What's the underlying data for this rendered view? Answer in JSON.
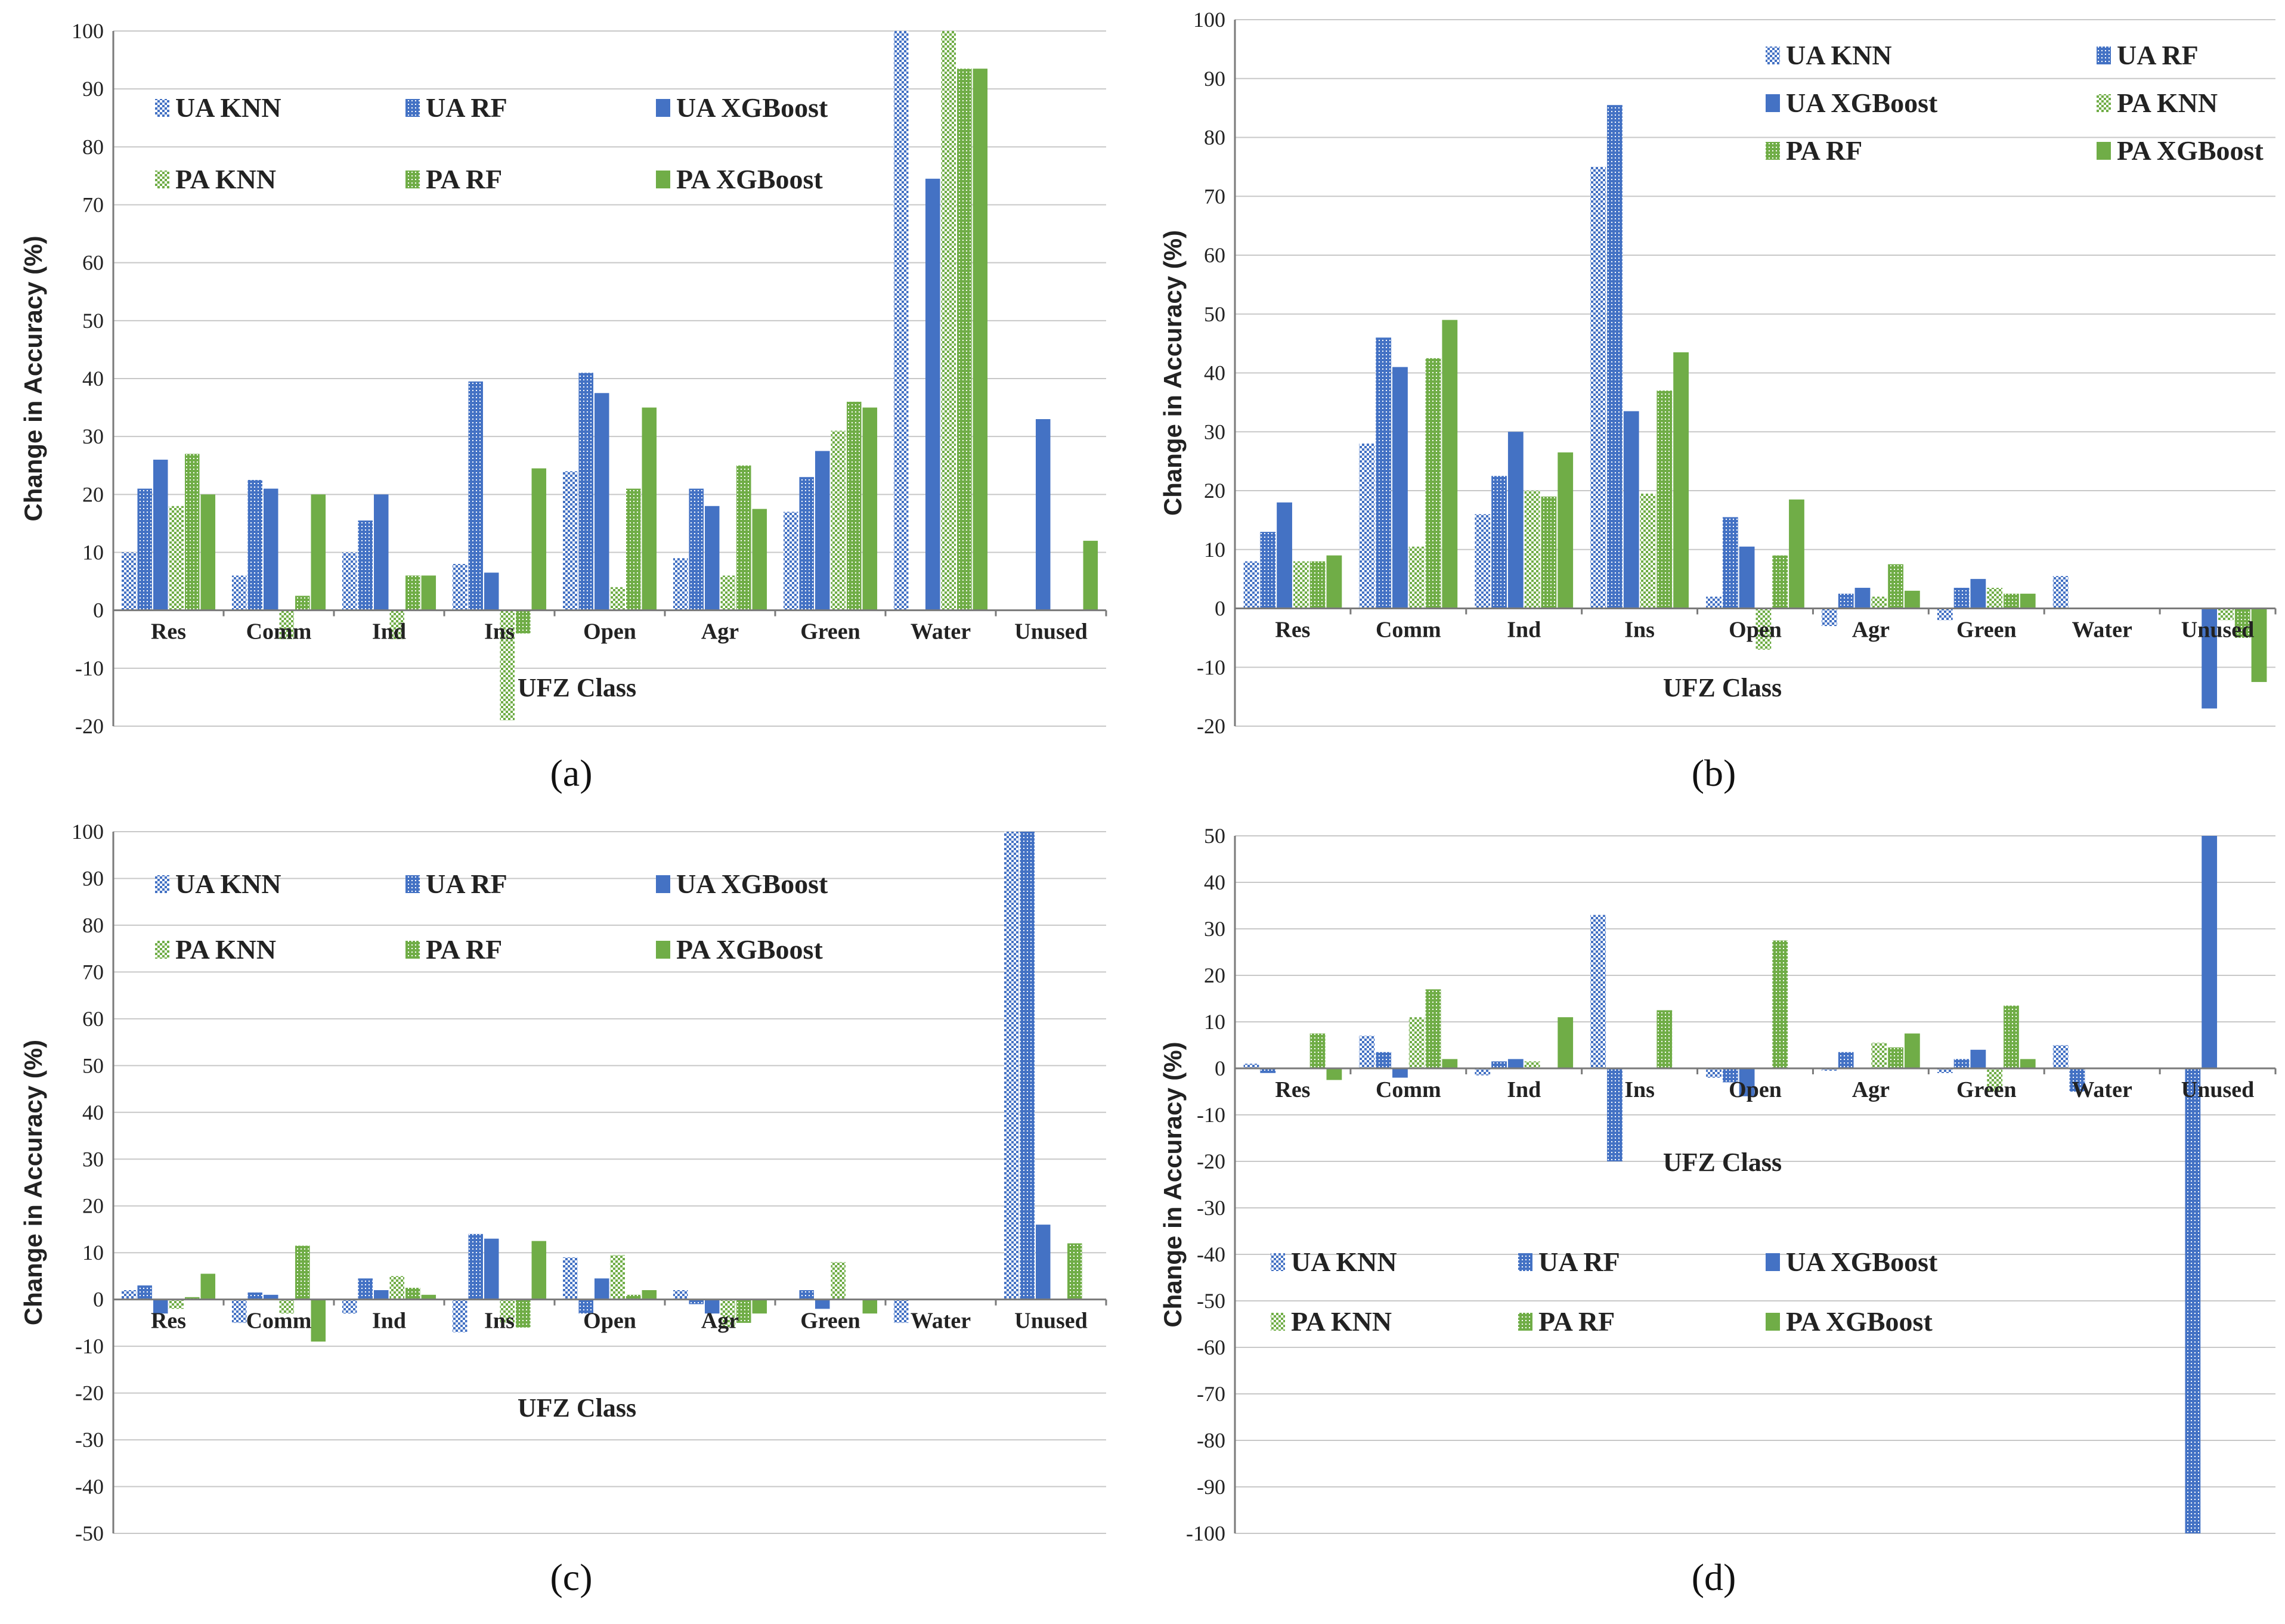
{
  "chart_data": [
    {
      "type": "bar",
      "panel_label": "(a)",
      "xlabel": "UFZ Class",
      "ylabel": "Change in Accuracy (%)",
      "ylim": [
        -20,
        100
      ],
      "ytick_step": 10,
      "legend_position": "top-left",
      "legend_columns": 3,
      "categories": [
        "Res",
        "Comm",
        "Ind",
        "Ins",
        "Open",
        "Agr",
        "Green",
        "Water",
        "Unused"
      ],
      "series": [
        {
          "name": "UA KNN",
          "values": [
            10,
            6,
            10,
            8,
            24,
            9,
            17,
            100,
            0
          ]
        },
        {
          "name": "UA RF",
          "values": [
            21,
            22.5,
            15.5,
            39.5,
            41,
            21,
            23,
            0,
            0
          ]
        },
        {
          "name": "UA XGBoost",
          "values": [
            26,
            21,
            20,
            6.5,
            37.5,
            18,
            27.5,
            74.5,
            33
          ]
        },
        {
          "name": "PA KNN",
          "values": [
            18,
            -5,
            -5,
            -19,
            4,
            6,
            31,
            100,
            0
          ]
        },
        {
          "name": "PA RF",
          "values": [
            27,
            2.5,
            6,
            -4,
            21,
            25,
            36,
            93.5,
            0
          ]
        },
        {
          "name": "PA XGBoost",
          "values": [
            20,
            20,
            6,
            24.5,
            35,
            17.5,
            35,
            93.5,
            12
          ]
        }
      ]
    },
    {
      "type": "bar",
      "panel_label": "(b)",
      "xlabel": "UFZ Class",
      "ylabel": "Change in Accuracy (%)",
      "ylim": [
        -20,
        100
      ],
      "ytick_step": 10,
      "legend_position": "top-right",
      "legend_columns": 2,
      "categories": [
        "Res",
        "Comm",
        "Ind",
        "Ins",
        "Open",
        "Agr",
        "Green",
        "Water",
        "Unused"
      ],
      "series": [
        {
          "name": "UA KNN",
          "values": [
            8,
            28,
            16,
            75,
            2,
            -3,
            -2,
            5.5,
            0
          ]
        },
        {
          "name": "UA RF",
          "values": [
            13,
            46,
            22.5,
            85.5,
            15.5,
            2.5,
            3.5,
            0,
            0
          ]
        },
        {
          "name": "UA XGBoost",
          "values": [
            18,
            41,
            30,
            33.5,
            10.5,
            3.5,
            5,
            0,
            -17
          ]
        },
        {
          "name": "PA KNN",
          "values": [
            8,
            10.5,
            20,
            19.5,
            -7,
            2,
            3.5,
            0,
            -2
          ]
        },
        {
          "name": "PA RF",
          "values": [
            8,
            42.5,
            19,
            37,
            9,
            7.5,
            2.5,
            0,
            -5
          ]
        },
        {
          "name": "PA XGBoost",
          "values": [
            9,
            49,
            26.5,
            43.5,
            18.5,
            3,
            2.5,
            0,
            -12.5
          ]
        }
      ]
    },
    {
      "type": "bar",
      "panel_label": "(c)",
      "xlabel": "UFZ Class",
      "ylabel": "Change in Accuracy (%)",
      "ylim": [
        -50,
        100
      ],
      "ytick_step": 10,
      "legend_position": "top-left",
      "legend_columns": 3,
      "categories": [
        "Res",
        "Comm",
        "Ind",
        "Ins",
        "Open",
        "Agr",
        "Green",
        "Water",
        "Unused"
      ],
      "series": [
        {
          "name": "UA KNN",
          "values": [
            2,
            -5,
            -3,
            -7,
            9,
            2,
            0,
            -5,
            100
          ]
        },
        {
          "name": "UA RF",
          "values": [
            3,
            1.5,
            4.5,
            14,
            -3,
            -1,
            2,
            0,
            100
          ]
        },
        {
          "name": "UA XGBoost",
          "values": [
            -3,
            1,
            2,
            13,
            4.5,
            -3,
            -2,
            0,
            16
          ]
        },
        {
          "name": "PA KNN",
          "values": [
            -2,
            -3,
            5,
            -5,
            9.5,
            -6,
            8,
            0,
            0
          ]
        },
        {
          "name": "PA RF",
          "values": [
            0.5,
            11.5,
            2.5,
            -6,
            1,
            -5,
            0,
            0,
            12
          ]
        },
        {
          "name": "PA XGBoost",
          "values": [
            5.5,
            -9,
            1,
            12.5,
            2,
            -3,
            -3,
            0,
            0
          ]
        }
      ]
    },
    {
      "type": "bar",
      "panel_label": "(d)",
      "xlabel": "UFZ Class",
      "ylabel": "Change in Accuracy (%)",
      "ylim": [
        -100,
        50
      ],
      "ytick_step": 10,
      "legend_position": "bottom-left",
      "legend_columns": 3,
      "categories": [
        "Res",
        "Comm",
        "Ind",
        "Ins",
        "Open",
        "Agr",
        "Green",
        "Water",
        "Unused"
      ],
      "series": [
        {
          "name": "UA KNN",
          "values": [
            1,
            7,
            -1.5,
            33,
            -2,
            -0.5,
            -1,
            5,
            0
          ]
        },
        {
          "name": "UA RF",
          "values": [
            -1,
            3.5,
            1.5,
            -20,
            -3,
            3.5,
            2,
            -5,
            -100
          ]
        },
        {
          "name": "UA XGBoost",
          "values": [
            0,
            -2,
            2,
            0,
            -6,
            0,
            4,
            0,
            50
          ]
        },
        {
          "name": "PA KNN",
          "values": [
            0,
            11,
            1.5,
            0,
            0,
            5.5,
            -5,
            0,
            0
          ]
        },
        {
          "name": "PA RF",
          "values": [
            7.5,
            17,
            0,
            12.5,
            27.5,
            4.5,
            13.5,
            0,
            0
          ]
        },
        {
          "name": "PA XGBoost",
          "values": [
            -2.5,
            2,
            11,
            0,
            0,
            7.5,
            2,
            0,
            0
          ]
        }
      ]
    }
  ],
  "colors": {
    "ua": "#4472c4",
    "pa": "#70ad47"
  },
  "series_patterns": [
    "checker",
    "dense",
    "solid",
    "checker",
    "dense",
    "solid"
  ]
}
